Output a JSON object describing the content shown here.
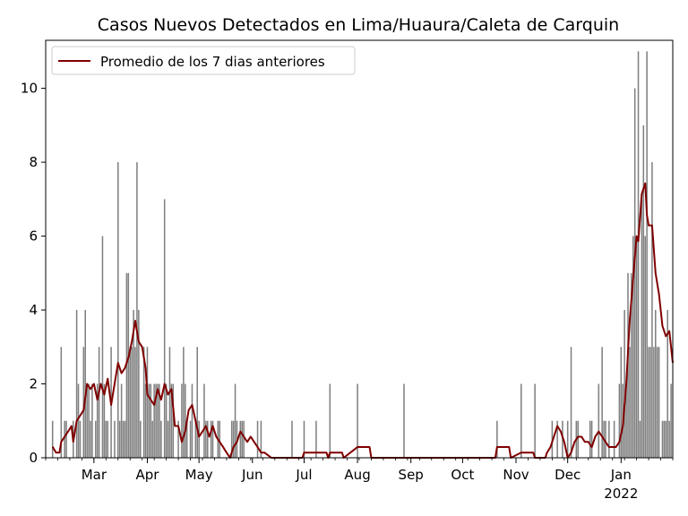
{
  "chart_data": {
    "type": "bar",
    "title": "Casos Nuevos Detectados en Lima/Huaura/Caleta de Carquin",
    "xlabel": "",
    "ylabel": "",
    "x_range": [
      "2021-02-01",
      "2022-01-31"
    ],
    "ylim": [
      0,
      11.3
    ],
    "y_ticks": [
      0,
      2,
      4,
      6,
      8,
      10
    ],
    "x_ticks": [
      {
        "date": "2021-03-01",
        "label": "Mar"
      },
      {
        "date": "2021-04-01",
        "label": "Apr"
      },
      {
        "date": "2021-05-01",
        "label": "May"
      },
      {
        "date": "2021-06-01",
        "label": "Jun"
      },
      {
        "date": "2021-07-01",
        "label": "Jul"
      },
      {
        "date": "2021-08-01",
        "label": "Aug"
      },
      {
        "date": "2021-09-01",
        "label": "Sep"
      },
      {
        "date": "2021-10-01",
        "label": "Oct"
      },
      {
        "date": "2021-11-01",
        "label": "Nov"
      },
      {
        "date": "2021-12-01",
        "label": "Dec"
      },
      {
        "date": "2022-01-01",
        "label": "Jan",
        "sublabel": "2022"
      }
    ],
    "grid": false,
    "legend_position": "top-left",
    "series": [
      {
        "kind": "bar",
        "color": "#808080",
        "points": [
          [
            "2021-02-05",
            1
          ],
          [
            "2021-02-10",
            3
          ],
          [
            "2021-02-12",
            1
          ],
          [
            "2021-02-13",
            1
          ],
          [
            "2021-02-17",
            1
          ],
          [
            "2021-02-19",
            4
          ],
          [
            "2021-02-20",
            2
          ],
          [
            "2021-02-21",
            1
          ],
          [
            "2021-02-23",
            3
          ],
          [
            "2021-02-24",
            4
          ],
          [
            "2021-02-25",
            2
          ],
          [
            "2021-02-26",
            2
          ],
          [
            "2021-02-27",
            1
          ],
          [
            "2021-02-28",
            2
          ],
          [
            "2021-03-02",
            1
          ],
          [
            "2021-03-03",
            2
          ],
          [
            "2021-03-04",
            3
          ],
          [
            "2021-03-06",
            6
          ],
          [
            "2021-03-07",
            2
          ],
          [
            "2021-03-08",
            1
          ],
          [
            "2021-03-09",
            1
          ],
          [
            "2021-03-11",
            3
          ],
          [
            "2021-03-13",
            1
          ],
          [
            "2021-03-15",
            8
          ],
          [
            "2021-03-16",
            1
          ],
          [
            "2021-03-17",
            2
          ],
          [
            "2021-03-18",
            1
          ],
          [
            "2021-03-19",
            1
          ],
          [
            "2021-03-20",
            5
          ],
          [
            "2021-03-21",
            5
          ],
          [
            "2021-03-22",
            3
          ],
          [
            "2021-03-23",
            3
          ],
          [
            "2021-03-24",
            4
          ],
          [
            "2021-03-25",
            3
          ],
          [
            "2021-03-26",
            8
          ],
          [
            "2021-03-27",
            4
          ],
          [
            "2021-03-28",
            1
          ],
          [
            "2021-03-30",
            3
          ],
          [
            "2021-03-31",
            2
          ],
          [
            "2021-04-01",
            3
          ],
          [
            "2021-04-02",
            2
          ],
          [
            "2021-04-03",
            2
          ],
          [
            "2021-04-04",
            1
          ],
          [
            "2021-04-05",
            2
          ],
          [
            "2021-04-06",
            2
          ],
          [
            "2021-04-07",
            2
          ],
          [
            "2021-04-08",
            2
          ],
          [
            "2021-04-09",
            1
          ],
          [
            "2021-04-11",
            7
          ],
          [
            "2021-04-12",
            2
          ],
          [
            "2021-04-13",
            1
          ],
          [
            "2021-04-14",
            3
          ],
          [
            "2021-04-15",
            2
          ],
          [
            "2021-04-16",
            2
          ],
          [
            "2021-04-19",
            1
          ],
          [
            "2021-04-21",
            2
          ],
          [
            "2021-04-22",
            3
          ],
          [
            "2021-04-23",
            2
          ],
          [
            "2021-04-24",
            1
          ],
          [
            "2021-04-26",
            1
          ],
          [
            "2021-04-27",
            2
          ],
          [
            "2021-04-29",
            1
          ],
          [
            "2021-04-30",
            3
          ],
          [
            "2021-05-01",
            1
          ],
          [
            "2021-05-04",
            2
          ],
          [
            "2021-05-05",
            1
          ],
          [
            "2021-05-06",
            1
          ],
          [
            "2021-05-08",
            1
          ],
          [
            "2021-05-09",
            1
          ],
          [
            "2021-05-12",
            1
          ],
          [
            "2021-05-13",
            1
          ],
          [
            "2021-05-20",
            1
          ],
          [
            "2021-05-21",
            1
          ],
          [
            "2021-05-22",
            2
          ],
          [
            "2021-05-23",
            1
          ],
          [
            "2021-05-25",
            1
          ],
          [
            "2021-05-26",
            1
          ],
          [
            "2021-05-27",
            1
          ],
          [
            "2021-06-04",
            1
          ],
          [
            "2021-06-06",
            1
          ],
          [
            "2021-06-24",
            1
          ],
          [
            "2021-07-01",
            1
          ],
          [
            "2021-07-08",
            1
          ],
          [
            "2021-07-16",
            2
          ],
          [
            "2021-08-01",
            2
          ],
          [
            "2021-08-28",
            2
          ],
          [
            "2021-10-21",
            1
          ],
          [
            "2021-11-04",
            2
          ],
          [
            "2021-11-12",
            2
          ],
          [
            "2021-11-22",
            1
          ],
          [
            "2021-11-25",
            1
          ],
          [
            "2021-11-28",
            1
          ],
          [
            "2021-12-01",
            1
          ],
          [
            "2021-12-03",
            3
          ],
          [
            "2021-12-06",
            1
          ],
          [
            "2021-12-07",
            1
          ],
          [
            "2021-12-14",
            1
          ],
          [
            "2021-12-15",
            1
          ],
          [
            "2021-12-19",
            2
          ],
          [
            "2021-12-21",
            3
          ],
          [
            "2021-12-22",
            1
          ],
          [
            "2021-12-23",
            1
          ],
          [
            "2021-12-25",
            1
          ],
          [
            "2021-12-28",
            1
          ],
          [
            "2021-12-31",
            2
          ],
          [
            "2022-01-01",
            3
          ],
          [
            "2022-01-02",
            2
          ],
          [
            "2022-01-03",
            4
          ],
          [
            "2022-01-04",
            2
          ],
          [
            "2022-01-05",
            5
          ],
          [
            "2022-01-06",
            3
          ],
          [
            "2022-01-07",
            5
          ],
          [
            "2022-01-08",
            6
          ],
          [
            "2022-01-09",
            10
          ],
          [
            "2022-01-10",
            6
          ],
          [
            "2022-01-11",
            11
          ],
          [
            "2022-01-12",
            1
          ],
          [
            "2022-01-13",
            7
          ],
          [
            "2022-01-14",
            9
          ],
          [
            "2022-01-15",
            6
          ],
          [
            "2022-01-16",
            11
          ],
          [
            "2022-01-17",
            3
          ],
          [
            "2022-01-18",
            3
          ],
          [
            "2022-01-19",
            8
          ],
          [
            "2022-01-20",
            3
          ],
          [
            "2022-01-21",
            4
          ],
          [
            "2022-01-22",
            3
          ],
          [
            "2022-01-23",
            3
          ],
          [
            "2022-01-25",
            1
          ],
          [
            "2022-01-26",
            1
          ],
          [
            "2022-01-27",
            1
          ],
          [
            "2022-01-28",
            4
          ],
          [
            "2022-01-29",
            1
          ],
          [
            "2022-01-30",
            2
          ]
        ]
      },
      {
        "kind": "line",
        "name": "Promedio de los 7 dias anteriores",
        "color": "#800000",
        "points": [
          [
            "2021-02-05",
            0.3
          ],
          [
            "2021-02-07",
            0.14
          ],
          [
            "2021-02-09",
            0.14
          ],
          [
            "2021-02-10",
            0.43
          ],
          [
            "2021-02-12",
            0.57
          ],
          [
            "2021-02-14",
            0.71
          ],
          [
            "2021-02-16",
            0.86
          ],
          [
            "2021-02-17",
            0.43
          ],
          [
            "2021-02-19",
            1.0
          ],
          [
            "2021-02-21",
            1.14
          ],
          [
            "2021-02-23",
            1.29
          ],
          [
            "2021-02-25",
            2.0
          ],
          [
            "2021-02-27",
            1.86
          ],
          [
            "2021-03-01",
            2.0
          ],
          [
            "2021-03-03",
            1.57
          ],
          [
            "2021-03-05",
            2.0
          ],
          [
            "2021-03-07",
            1.71
          ],
          [
            "2021-03-09",
            2.14
          ],
          [
            "2021-03-11",
            1.43
          ],
          [
            "2021-03-13",
            2.0
          ],
          [
            "2021-03-15",
            2.57
          ],
          [
            "2021-03-17",
            2.29
          ],
          [
            "2021-03-19",
            2.43
          ],
          [
            "2021-03-21",
            2.71
          ],
          [
            "2021-03-23",
            3.14
          ],
          [
            "2021-03-25",
            3.71
          ],
          [
            "2021-03-27",
            3.14
          ],
          [
            "2021-03-29",
            3.0
          ],
          [
            "2021-03-31",
            2.43
          ],
          [
            "2021-04-01",
            1.71
          ],
          [
            "2021-04-03",
            1.57
          ],
          [
            "2021-04-05",
            1.43
          ],
          [
            "2021-04-07",
            1.86
          ],
          [
            "2021-04-09",
            1.57
          ],
          [
            "2021-04-11",
            2.0
          ],
          [
            "2021-04-13",
            1.71
          ],
          [
            "2021-04-15",
            1.86
          ],
          [
            "2021-04-17",
            0.86
          ],
          [
            "2021-04-19",
            0.86
          ],
          [
            "2021-04-21",
            0.43
          ],
          [
            "2021-04-23",
            0.71
          ],
          [
            "2021-04-25",
            1.29
          ],
          [
            "2021-04-27",
            1.43
          ],
          [
            "2021-04-29",
            1.0
          ],
          [
            "2021-05-01",
            0.57
          ],
          [
            "2021-05-03",
            0.71
          ],
          [
            "2021-05-05",
            0.86
          ],
          [
            "2021-05-07",
            0.57
          ],
          [
            "2021-05-09",
            0.86
          ],
          [
            "2021-05-11",
            0.57
          ],
          [
            "2021-05-13",
            0.43
          ],
          [
            "2021-05-15",
            0.29
          ],
          [
            "2021-05-17",
            0.14
          ],
          [
            "2021-05-19",
            0.0
          ],
          [
            "2021-05-21",
            0.29
          ],
          [
            "2021-05-23",
            0.43
          ],
          [
            "2021-05-25",
            0.71
          ],
          [
            "2021-05-27",
            0.57
          ],
          [
            "2021-05-29",
            0.43
          ],
          [
            "2021-05-31",
            0.57
          ],
          [
            "2021-06-02",
            0.43
          ],
          [
            "2021-06-04",
            0.29
          ],
          [
            "2021-06-06",
            0.14
          ],
          [
            "2021-06-08",
            0.14
          ],
          [
            "2021-06-12",
            0.0
          ],
          [
            "2021-06-30",
            0.0
          ],
          [
            "2021-07-01",
            0.14
          ],
          [
            "2021-07-14",
            0.14
          ],
          [
            "2021-07-15",
            0.0
          ],
          [
            "2021-07-16",
            0.14
          ],
          [
            "2021-07-23",
            0.14
          ],
          [
            "2021-07-24",
            0.0
          ],
          [
            "2021-08-01",
            0.29
          ],
          [
            "2021-08-08",
            0.29
          ],
          [
            "2021-08-09",
            0.0
          ],
          [
            "2021-10-20",
            0.0
          ],
          [
            "2021-10-21",
            0.29
          ],
          [
            "2021-10-28",
            0.29
          ],
          [
            "2021-10-29",
            0.0
          ],
          [
            "2021-11-04",
            0.14
          ],
          [
            "2021-11-11",
            0.14
          ],
          [
            "2021-11-12",
            0.0
          ],
          [
            "2021-11-18",
            0.0
          ],
          [
            "2021-11-19",
            0.14
          ],
          [
            "2021-11-21",
            0.29
          ],
          [
            "2021-11-23",
            0.57
          ],
          [
            "2021-11-25",
            0.86
          ],
          [
            "2021-11-27",
            0.71
          ],
          [
            "2021-11-29",
            0.43
          ],
          [
            "2021-12-01",
            0.0
          ],
          [
            "2021-12-03",
            0.14
          ],
          [
            "2021-12-05",
            0.43
          ],
          [
            "2021-12-07",
            0.57
          ],
          [
            "2021-12-09",
            0.57
          ],
          [
            "2021-12-11",
            0.43
          ],
          [
            "2021-12-13",
            0.43
          ],
          [
            "2021-12-15",
            0.29
          ],
          [
            "2021-12-17",
            0.57
          ],
          [
            "2021-12-19",
            0.71
          ],
          [
            "2021-12-21",
            0.57
          ],
          [
            "2021-12-23",
            0.43
          ],
          [
            "2021-12-25",
            0.29
          ],
          [
            "2021-12-27",
            0.29
          ],
          [
            "2021-12-29",
            0.29
          ],
          [
            "2021-12-31",
            0.43
          ],
          [
            "2022-01-02",
            0.86
          ],
          [
            "2022-01-04",
            2.0
          ],
          [
            "2022-01-06",
            3.71
          ],
          [
            "2022-01-08",
            4.86
          ],
          [
            "2022-01-10",
            6.0
          ],
          [
            "2022-01-11",
            5.86
          ],
          [
            "2022-01-13",
            7.14
          ],
          [
            "2022-01-15",
            7.43
          ],
          [
            "2022-01-16",
            6.57
          ],
          [
            "2022-01-17",
            6.29
          ],
          [
            "2022-01-19",
            6.29
          ],
          [
            "2022-01-21",
            5.0
          ],
          [
            "2022-01-23",
            4.43
          ],
          [
            "2022-01-25",
            3.57
          ],
          [
            "2022-01-27",
            3.29
          ],
          [
            "2022-01-29",
            3.43
          ],
          [
            "2022-01-31",
            2.57
          ]
        ]
      }
    ]
  }
}
